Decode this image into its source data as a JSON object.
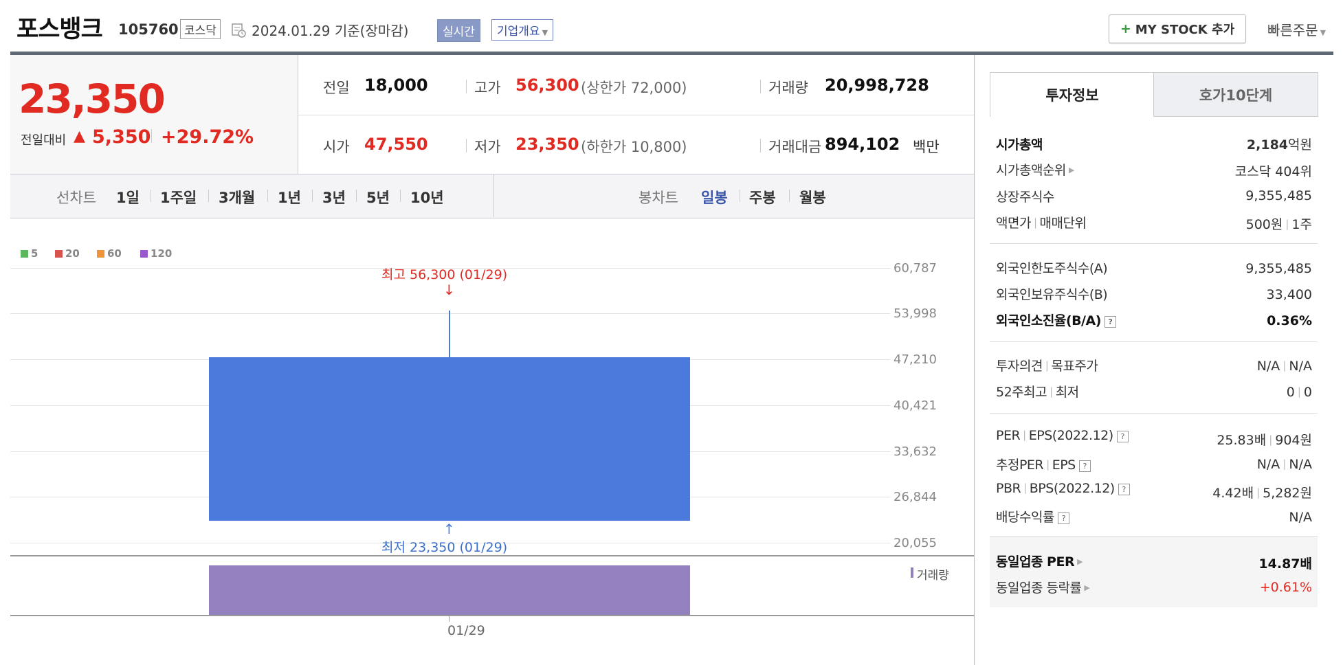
{
  "header": {
    "name": "포스뱅크",
    "code": "105760",
    "market": "코스닥",
    "date": "2024.01.29 기준(장마감)",
    "realtime_label": "실시간",
    "company_label": "기업개요",
    "mystock_label": "MY STOCK 추가",
    "quick_order_label": "빠른주문"
  },
  "price": {
    "current": "23,350",
    "change_label": "전일대비",
    "change_value": "5,350",
    "change_pct": "+29.72%"
  },
  "stats": {
    "prev_label": "전일",
    "prev_value": "18,000",
    "high_label": "고가",
    "high_value": "56,300",
    "upper_limit": "(상한가 72,000)",
    "volume_label": "거래량",
    "volume_value": "20,998,728",
    "open_label": "시가",
    "open_value": "47,550",
    "low_label": "저가",
    "low_value": "23,350",
    "lower_limit": "(하한가 10,800)",
    "amount_label": "거래대금",
    "amount_value": "894,102",
    "amount_unit": "백만"
  },
  "period_bar": {
    "line_label": "선차트",
    "line_items": [
      "1일",
      "1주일",
      "3개월",
      "1년",
      "3년",
      "5년",
      "10년"
    ],
    "candle_label": "봉차트",
    "candle_items": [
      "일봉",
      "주봉",
      "월봉"
    ],
    "active_candle": "일봉"
  },
  "chart": {
    "legend": [
      {
        "label": "5",
        "color": "#5cb85c"
      },
      {
        "label": "20",
        "color": "#d9534f"
      },
      {
        "label": "60",
        "color": "#f0943c"
      },
      {
        "label": "120",
        "color": "#9b59d0"
      }
    ],
    "y_ticks": [
      "60,787",
      "53,998",
      "47,210",
      "40,421",
      "33,632",
      "26,844",
      "20,055"
    ],
    "high_annotation": "최고 56,300 (01/29)",
    "low_annotation": "최저 23,350 (01/29)",
    "volume_legend": "거래량",
    "x_label": "01/29",
    "up_arrow": "↑",
    "down_arrow": "↓"
  },
  "chart_data": {
    "type": "candlestick",
    "x": [
      "01/29"
    ],
    "open": [
      47550
    ],
    "high": [
      56300
    ],
    "low": [
      23350
    ],
    "close": [
      23350
    ],
    "volume": [
      20998728
    ],
    "ylim": [
      20055,
      60787
    ]
  },
  "tabs": {
    "info": "투자정보",
    "hoga": "호가10단계"
  },
  "invest_info": {
    "market_cap_label": "시가총액",
    "market_cap_value": "2,184",
    "market_cap_unit": "억원",
    "market_cap_rank_label": "시가총액순위",
    "market_cap_rank_value": "코스닥 404위",
    "listed_shares_label": "상장주식수",
    "listed_shares_value": "9,355,485",
    "face_value_label": "액면가",
    "trade_unit_label": "매매단위",
    "face_value": "500원",
    "trade_unit": "1주",
    "foreign_limit_label": "외국인한도주식수(A)",
    "foreign_limit_value": "9,355,485",
    "foreign_hold_label": "외국인보유주식수(B)",
    "foreign_hold_value": "33,400",
    "foreign_ratio_label": "외국인소진율(B/A)",
    "foreign_ratio_value": "0.36%",
    "opinion_label": "투자의견",
    "target_label": "목표주가",
    "opinion_value": "N/A",
    "target_value": "N/A",
    "w52_high_label": "52주최고",
    "w52_low_label": "최저",
    "w52_high_value": "0",
    "w52_low_value": "0",
    "per_label": "PER",
    "eps_label": "EPS(2022.12)",
    "per_value": "25.83배",
    "eps_value": "904원",
    "est_per_label": "추정PER",
    "est_eps_label": "EPS",
    "est_per_value": "N/A",
    "est_eps_value": "N/A",
    "pbr_label": "PBR",
    "bps_label": "BPS(2022.12)",
    "pbr_value": "4.42배",
    "bps_value": "5,282원",
    "dividend_label": "배당수익률",
    "dividend_value": "N/A",
    "sector_per_label": "동일업종 PER",
    "sector_per_value": "14.87배",
    "sector_chg_label": "동일업종 등락률",
    "sector_chg_value": "+0.61%",
    "help_glyph": "?"
  }
}
